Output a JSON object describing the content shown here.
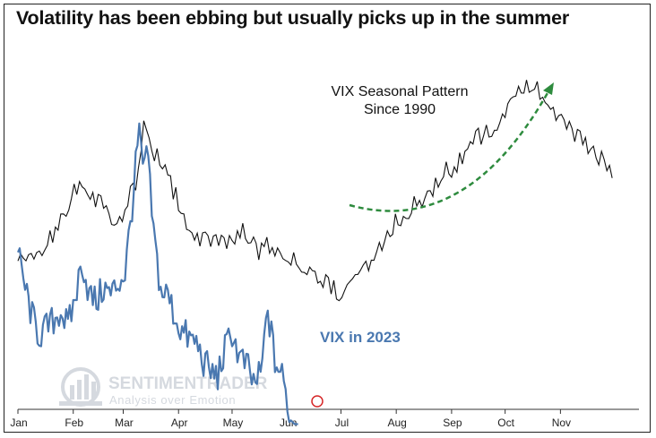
{
  "chart_data": {
    "type": "line",
    "title": "Volatility has been ebbing but usually picks up in the summer",
    "x_tick_labels": [
      "Jan",
      "Feb",
      "Mar",
      "Apr",
      "May",
      "Jun",
      "Jul",
      "Aug",
      "Sep",
      "Oct",
      "Nov"
    ],
    "xlabel": "",
    "ylabel": "",
    "grid": false,
    "legend": "none",
    "series": [
      {
        "name": "VIX Seasonal Pattern Since 1990",
        "color": "#111111",
        "x": [
          0,
          8,
          15,
          22,
          30,
          38,
          46,
          53,
          60,
          67,
          71,
          74,
          80,
          88,
          95,
          102,
          110,
          118,
          126,
          134,
          142,
          150,
          158,
          166,
          174,
          182,
          190,
          198,
          206,
          214,
          222,
          230,
          238,
          246,
          254,
          262,
          270,
          278,
          286,
          294,
          302,
          310,
          318,
          326,
          334
        ],
        "values": [
          0.42,
          0.4,
          0.44,
          0.48,
          0.58,
          0.6,
          0.56,
          0.52,
          0.54,
          0.63,
          0.78,
          0.72,
          0.66,
          0.58,
          0.5,
          0.45,
          0.47,
          0.46,
          0.49,
          0.43,
          0.45,
          0.41,
          0.4,
          0.37,
          0.34,
          0.3,
          0.36,
          0.4,
          0.47,
          0.52,
          0.55,
          0.58,
          0.64,
          0.66,
          0.72,
          0.75,
          0.78,
          0.84,
          0.88,
          0.86,
          0.8,
          0.75,
          0.72,
          0.68,
          0.64
        ]
      },
      {
        "name": "VIX in 2023",
        "color": "#4a78b0",
        "x": [
          0,
          4,
          8,
          12,
          16,
          20,
          24,
          28,
          32,
          36,
          40,
          44,
          48,
          52,
          56,
          60,
          64,
          68,
          70,
          72,
          76,
          80,
          84,
          88,
          92,
          96,
          100,
          104,
          108,
          112,
          116,
          120,
          124,
          128,
          132,
          136,
          140,
          144,
          148,
          151,
          153,
          155,
          157
        ],
        "values": [
          0.42,
          0.33,
          0.25,
          0.2,
          0.22,
          0.24,
          0.27,
          0.22,
          0.3,
          0.4,
          0.31,
          0.29,
          0.33,
          0.31,
          0.34,
          0.37,
          0.55,
          0.76,
          0.63,
          0.71,
          0.48,
          0.32,
          0.31,
          0.25,
          0.21,
          0.19,
          0.18,
          0.13,
          0.1,
          0.09,
          0.16,
          0.21,
          0.14,
          0.12,
          0.07,
          0.09,
          0.27,
          0.13,
          0.09,
          0.02,
          -0.03,
          -0.04,
          -0.04
        ]
      }
    ]
  },
  "annotations": {
    "seasonal_label_line1": "VIX Seasonal Pattern",
    "seasonal_label_line2": "Since 1990",
    "vix2023_label": "VIX in 2023"
  },
  "watermark": {
    "brand": "SENTIMENTRADER",
    "tagline": "Analysis over Emotion"
  },
  "colors": {
    "seasonal": "#111111",
    "vix2023": "#4a78b0",
    "arrow": "#2e8b3e",
    "end_marker": "#d62728",
    "watermark": "#d5d9df"
  }
}
